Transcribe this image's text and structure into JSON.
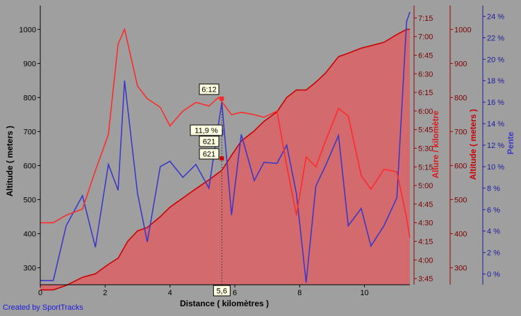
{
  "credit": "Created by SportTracks",
  "chart_data": {
    "type": "line",
    "xlabel": "Distance ( kilomètres )",
    "xlim": [
      0,
      11.4
    ],
    "xticks": [
      0,
      2,
      4,
      6,
      8,
      10
    ],
    "grid": false,
    "colors": {
      "altitude": "#cc0000",
      "altitude_fill": "#d36a6d",
      "pace": "#ff2a2a",
      "slope": "#3a38c8",
      "background": "#a09fa0"
    },
    "axes": {
      "left": {
        "label": "Altitude ( meters )",
        "min": 250,
        "max": 1070,
        "ticks": [
          300,
          400,
          500,
          600,
          700,
          800,
          900,
          1000
        ]
      },
      "pace": {
        "label": "Allure / kilomètre",
        "min_sec": 220,
        "max_sec": 445,
        "ticks": [
          "3:45",
          "4:00",
          "4:15",
          "4:30",
          "4:45",
          "5:00",
          "5:15",
          "5:30",
          "5:45",
          "6:00",
          "6:15",
          "6:30",
          "6:45",
          "7:00",
          "7:15"
        ]
      },
      "altitude_right": {
        "label": "Altitude ( meters )",
        "min": 250,
        "max": 1070,
        "ticks": [
          300,
          400,
          500,
          600,
          700,
          800,
          900,
          1000
        ]
      },
      "slope": {
        "label": "Pente",
        "min": -1,
        "max": 25,
        "ticks": [
          "0 %",
          "2 %",
          "4 %",
          "6 %",
          "8 %",
          "10 %",
          "12 %",
          "14 %",
          "16 %",
          "18 %",
          "20 %",
          "22 %",
          "24 %"
        ]
      }
    },
    "series": [
      {
        "name": "Altitude",
        "axis": "left",
        "x": [
          0,
          0.4,
          0.8,
          1.3,
          1.7,
          2.1,
          2.4,
          2.7,
          3.0,
          3.3,
          3.7,
          4.0,
          4.4,
          4.8,
          5.2,
          5.6,
          5.9,
          6.2,
          6.6,
          6.9,
          7.3,
          7.6,
          7.9,
          8.2,
          8.5,
          8.8,
          9.2,
          9.5,
          9.9,
          10.2,
          10.6,
          11.0,
          11.3,
          11.4
        ],
        "values": [
          235,
          235,
          248,
          272,
          282,
          310,
          328,
          378,
          408,
          418,
          450,
          478,
          505,
          532,
          558,
          586,
          630,
          672,
          702,
          730,
          758,
          800,
          822,
          822,
          845,
          872,
          920,
          930,
          945,
          952,
          962,
          985,
          1000,
          1000
        ]
      },
      {
        "name": "Allure / kilomètre",
        "axis": "pace",
        "x": [
          0,
          0.4,
          0.8,
          1.3,
          1.7,
          2.1,
          2.4,
          2.6,
          3.0,
          3.3,
          3.7,
          4.0,
          4.4,
          4.8,
          5.2,
          5.5,
          5.9,
          6.2,
          6.6,
          6.9,
          7.3,
          7.6,
          7.9,
          8.2,
          8.5,
          8.8,
          9.2,
          9.5,
          9.9,
          10.2,
          10.6,
          11.0,
          11.3,
          11.4
        ],
        "values": [
          "4:30",
          "4:30",
          "4:36",
          "4:41",
          "5:12",
          "5:41",
          "6:54",
          "7:06",
          "6:20",
          "6:10",
          "6:03",
          "5:48",
          "6:00",
          "6:07",
          "6:04",
          "6:11",
          "5:57",
          "5:59",
          "5:57",
          "5:55",
          "6:00",
          "5:16",
          "4:36",
          "5:23",
          "5:15",
          "5:36",
          "6:02",
          "5:56",
          "5:08",
          "4:57",
          "5:13",
          "5:11",
          "4:34",
          "4:18"
        ]
      },
      {
        "name": "Pente",
        "axis": "slope",
        "x": [
          0,
          0.4,
          0.8,
          1.3,
          1.7,
          2.1,
          2.4,
          2.6,
          3.0,
          3.3,
          3.7,
          4.0,
          4.4,
          4.8,
          5.2,
          5.6,
          5.9,
          6.2,
          6.6,
          6.9,
          7.3,
          7.6,
          7.9,
          8.2,
          8.5,
          8.8,
          9.2,
          9.5,
          9.9,
          10.2,
          10.6,
          11.0,
          11.3,
          11.4
        ],
        "values": [
          -0.6,
          -0.6,
          4.5,
          7.3,
          2.5,
          10.2,
          7.8,
          18.0,
          7.5,
          3.0,
          10.0,
          10.5,
          9.0,
          10.2,
          8.0,
          16.0,
          5.5,
          13.0,
          8.7,
          10.4,
          10.3,
          12.0,
          7.5,
          -0.8,
          8.2,
          10.1,
          12.9,
          4.5,
          6.1,
          2.6,
          4.5,
          7.1,
          23.5,
          24.4
        ]
      }
    ],
    "marker": {
      "x": 5.6,
      "x_label": "5,6",
      "altitude": 621,
      "altitude_label_1": "621",
      "altitude_label_2": "621",
      "slope_label": "11,9 %",
      "pace_label": "6:12"
    }
  }
}
